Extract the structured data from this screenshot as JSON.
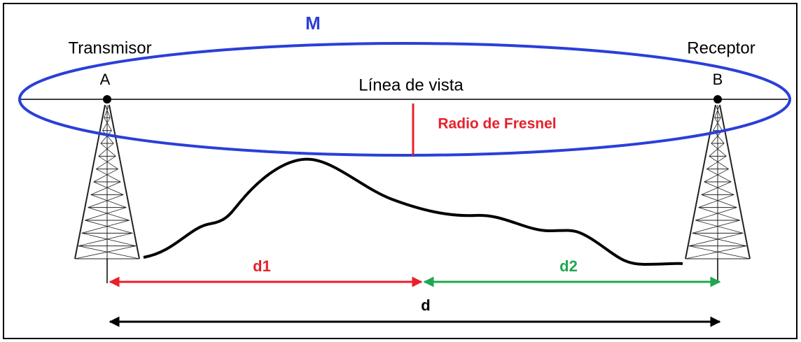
{
  "labels": {
    "ellipse": "M",
    "transmitter": "Transmisor",
    "receiver": "Receptor",
    "point_a": "A",
    "point_b": "B",
    "line_of_sight": "Línea de vista",
    "fresnel_radius": "Radio de Fresnel",
    "d1": "d1",
    "d2": "d2",
    "d": "d"
  }
}
